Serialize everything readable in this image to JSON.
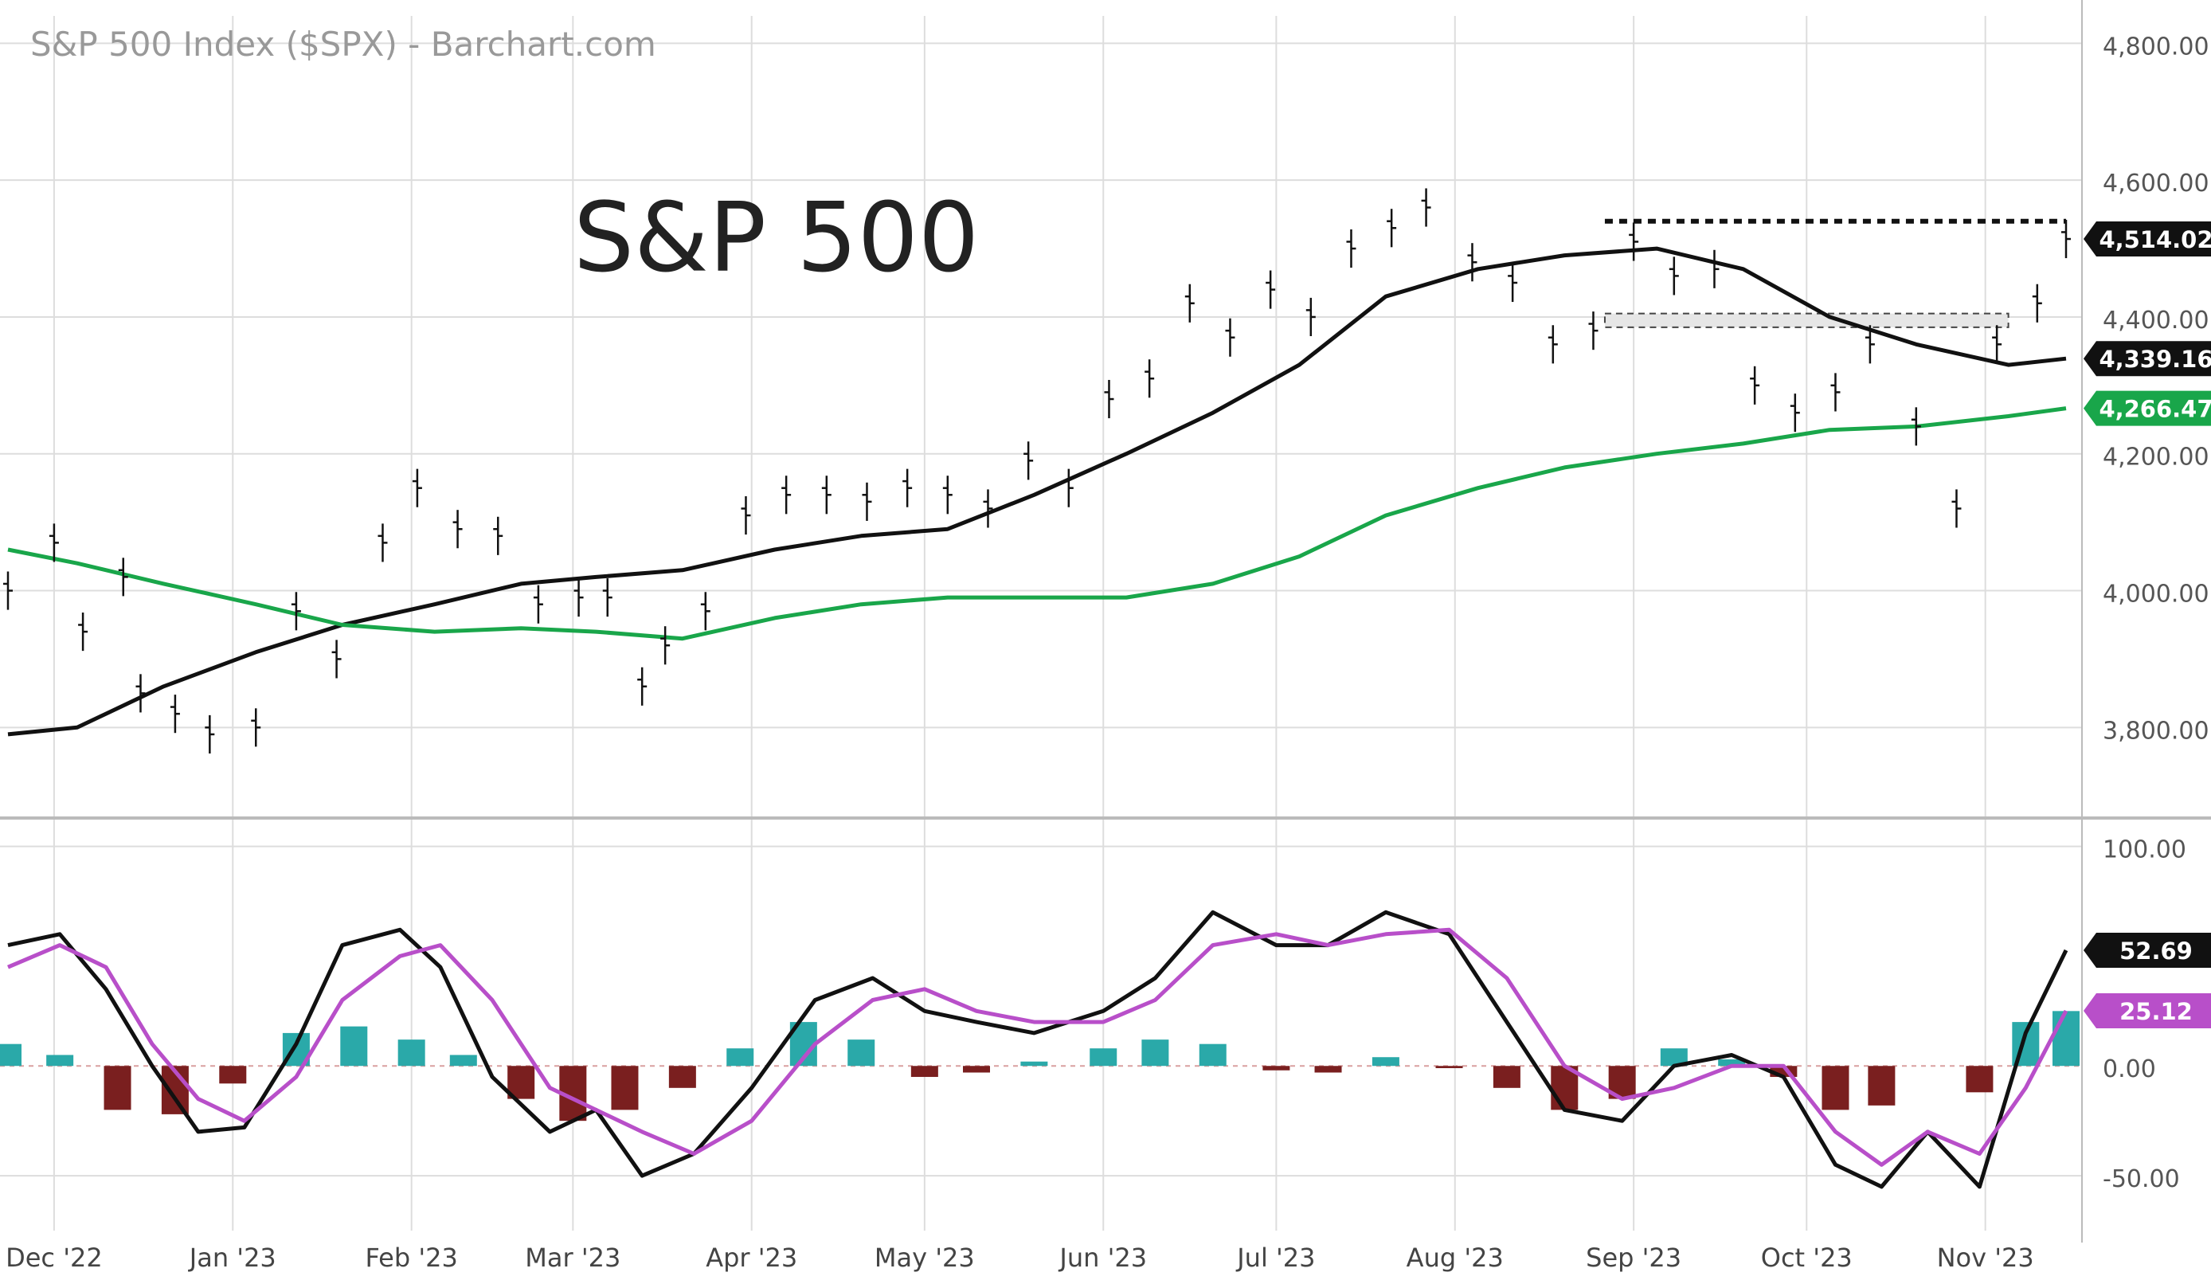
{
  "header": {
    "title": "S&P 500 Index ($SPX) - Barchart.com",
    "big_label": "S&P 500"
  },
  "colors": {
    "ma50": "#111111",
    "ma200": "#19a64a",
    "stoch_k": "#111111",
    "stoch_d": "#b84fc9",
    "hist_pos": "#2aa9a9",
    "hist_neg": "#7a1f1f",
    "grid": "#dddddd",
    "separator": "#bbbbbb",
    "resistance": "#111111"
  },
  "chart_data": [
    {
      "type": "line",
      "panel": "price",
      "title": "S&P 500 Index ($SPX) - Barchart.com",
      "x_ticks": [
        "Dec '22",
        "Jan '23",
        "Feb '23",
        "Mar '23",
        "Apr '23",
        "May '23",
        "Jun '23",
        "Jul '23",
        "Aug '23",
        "Sep '23",
        "Oct '23",
        "Nov '23"
      ],
      "x_range": [
        "2022-11-23",
        "2023-11-15"
      ],
      "y_ticks": [
        3800,
        4000,
        4200,
        4400,
        4600,
        4800
      ],
      "y_tick_labels": [
        "3,800.00",
        "4,000.00",
        "4,200.00",
        "4,400.00",
        "4,600.00",
        "4,800.00"
      ],
      "ylim": [
        3670,
        4840
      ],
      "grid": true,
      "price_bars": {
        "x": [
          "2022-11-23",
          "2022-12-01",
          "2022-12-06",
          "2022-12-13",
          "2022-12-16",
          "2022-12-22",
          "2022-12-28",
          "2023-01-05",
          "2023-01-12",
          "2023-01-19",
          "2023-01-27",
          "2023-02-02",
          "2023-02-09",
          "2023-02-16",
          "2023-02-23",
          "2023-03-02",
          "2023-03-07",
          "2023-03-13",
          "2023-03-17",
          "2023-03-24",
          "2023-03-31",
          "2023-04-07",
          "2023-04-14",
          "2023-04-21",
          "2023-04-28",
          "2023-05-05",
          "2023-05-12",
          "2023-05-19",
          "2023-05-26",
          "2023-06-02",
          "2023-06-09",
          "2023-06-16",
          "2023-06-23",
          "2023-06-30",
          "2023-07-07",
          "2023-07-14",
          "2023-07-21",
          "2023-07-27",
          "2023-08-04",
          "2023-08-11",
          "2023-08-18",
          "2023-08-25",
          "2023-09-01",
          "2023-09-08",
          "2023-09-15",
          "2023-09-22",
          "2023-09-29",
          "2023-10-06",
          "2023-10-12",
          "2023-10-20",
          "2023-10-27",
          "2023-11-03",
          "2023-11-10",
          "2023-11-15"
        ],
        "close": [
          4000,
          4070,
          3940,
          4020,
          3850,
          3820,
          3790,
          3800,
          3970,
          3900,
          4070,
          4150,
          4090,
          4080,
          3980,
          3990,
          3990,
          3860,
          3920,
          3970,
          4110,
          4140,
          4140,
          4130,
          4150,
          4140,
          4120,
          4190,
          4150,
          4280,
          4310,
          4420,
          4370,
          4440,
          4400,
          4500,
          4530,
          4560,
          4480,
          4450,
          4360,
          4380,
          4510,
          4460,
          4470,
          4300,
          4260,
          4290,
          4360,
          4240,
          4120,
          4360,
          4420,
          4514
        ]
      },
      "series": [
        {
          "name": "",
          "color": "#111111",
          "x": [
            "2022-11-23",
            "2022-12-05",
            "2022-12-20",
            "2023-01-05",
            "2023-01-20",
            "2023-02-05",
            "2023-02-20",
            "2023-03-05",
            "2023-03-20",
            "2023-04-05",
            "2023-04-20",
            "2023-05-05",
            "2023-05-20",
            "2023-06-05",
            "2023-06-20",
            "2023-07-05",
            "2023-07-20",
            "2023-08-05",
            "2023-08-20",
            "2023-09-05",
            "2023-09-20",
            "2023-10-05",
            "2023-10-20",
            "2023-11-05",
            "2023-11-15"
          ],
          "values": [
            3790,
            3800,
            3860,
            3910,
            3950,
            3980,
            4010,
            4020,
            4030,
            4060,
            4080,
            4090,
            4140,
            4200,
            4260,
            4330,
            4430,
            4470,
            4490,
            4500,
            4470,
            4400,
            4360,
            4330,
            4339.16
          ]
        },
        {
          "name": "",
          "color": "#19a64a",
          "x": [
            "2022-11-23",
            "2022-12-05",
            "2022-12-20",
            "2023-01-05",
            "2023-01-20",
            "2023-02-05",
            "2023-02-20",
            "2023-03-05",
            "2023-03-20",
            "2023-04-05",
            "2023-04-20",
            "2023-05-05",
            "2023-05-20",
            "2023-06-05",
            "2023-06-20",
            "2023-07-05",
            "2023-07-20",
            "2023-08-05",
            "2023-08-20",
            "2023-09-05",
            "2023-09-20",
            "2023-10-05",
            "2023-10-20",
            "2023-11-05",
            "2023-11-15"
          ],
          "values": [
            4060,
            4040,
            4010,
            3980,
            3950,
            3940,
            3945,
            3940,
            3930,
            3960,
            3980,
            3990,
            3990,
            3990,
            4010,
            4050,
            4110,
            4150,
            4180,
            4200,
            4215,
            4235,
            4240,
            4255,
            4266.47
          ]
        }
      ],
      "annotations": [
        {
          "kind": "resistance_line",
          "value": 4540,
          "from": "2023-08-27",
          "to": "2023-11-15",
          "style": "dotted"
        },
        {
          "kind": "band",
          "low": 4385,
          "high": 4405,
          "from": "2023-08-27",
          "to": "2023-11-05",
          "style": "dashed"
        }
      ],
      "badges": [
        {
          "label": "4,514.02",
          "value": 4514.02,
          "bg": "#111111",
          "fg": "#ffffff"
        },
        {
          "label": "4,339.16",
          "value": 4339.16,
          "bg": "#111111",
          "fg": "#ffffff"
        },
        {
          "label": "4,266.47",
          "value": 4266.47,
          "bg": "#19a64a",
          "fg": "#ffffff"
        }
      ]
    },
    {
      "type": "line",
      "panel": "oscillator",
      "y_ticks": [
        100,
        0,
        -50
      ],
      "y_tick_labels": [
        "100.00",
        "0.00",
        "-50.00"
      ],
      "ylim": [
        -75,
        110
      ],
      "grid": true,
      "series": [
        {
          "name": "",
          "color": "#111111",
          "x": [
            "2022-11-23",
            "2022-12-02",
            "2022-12-10",
            "2022-12-18",
            "2022-12-26",
            "2023-01-03",
            "2023-01-12",
            "2023-01-20",
            "2023-01-30",
            "2023-02-06",
            "2023-02-15",
            "2023-02-25",
            "2023-03-05",
            "2023-03-13",
            "2023-03-22",
            "2023-04-01",
            "2023-04-12",
            "2023-04-22",
            "2023-05-01",
            "2023-05-10",
            "2023-05-20",
            "2023-06-01",
            "2023-06-10",
            "2023-06-20",
            "2023-07-01",
            "2023-07-10",
            "2023-07-20",
            "2023-07-31",
            "2023-08-10",
            "2023-08-20",
            "2023-08-30",
            "2023-09-08",
            "2023-09-18",
            "2023-09-27",
            "2023-10-06",
            "2023-10-14",
            "2023-10-22",
            "2023-10-31",
            "2023-11-08",
            "2023-11-15"
          ],
          "values": [
            55,
            60,
            35,
            0,
            -30,
            -28,
            10,
            55,
            62,
            45,
            -5,
            -30,
            -20,
            -50,
            -40,
            -10,
            30,
            40,
            25,
            20,
            15,
            25,
            40,
            70,
            55,
            55,
            70,
            60,
            20,
            -20,
            -25,
            0,
            5,
            -5,
            -45,
            -55,
            -30,
            -55,
            15,
            52.69
          ]
        },
        {
          "name": "",
          "color": "#b84fc9",
          "x": [
            "2022-11-23",
            "2022-12-02",
            "2022-12-10",
            "2022-12-18",
            "2022-12-26",
            "2023-01-03",
            "2023-01-12",
            "2023-01-20",
            "2023-01-30",
            "2023-02-06",
            "2023-02-15",
            "2023-02-25",
            "2023-03-05",
            "2023-03-13",
            "2023-03-22",
            "2023-04-01",
            "2023-04-12",
            "2023-04-22",
            "2023-05-01",
            "2023-05-10",
            "2023-05-20",
            "2023-06-01",
            "2023-06-10",
            "2023-06-20",
            "2023-07-01",
            "2023-07-10",
            "2023-07-20",
            "2023-07-31",
            "2023-08-10",
            "2023-08-20",
            "2023-08-30",
            "2023-09-08",
            "2023-09-18",
            "2023-09-27",
            "2023-10-06",
            "2023-10-14",
            "2023-10-22",
            "2023-10-31",
            "2023-11-08",
            "2023-11-15"
          ],
          "values": [
            45,
            55,
            45,
            10,
            -15,
            -25,
            -5,
            30,
            50,
            55,
            30,
            -10,
            -20,
            -30,
            -40,
            -25,
            10,
            30,
            35,
            25,
            20,
            20,
            30,
            55,
            60,
            55,
            60,
            62,
            40,
            0,
            -15,
            -10,
            0,
            0,
            -30,
            -45,
            -30,
            -40,
            -10,
            25.12
          ]
        }
      ],
      "histogram": {
        "x": [
          "2022-11-23",
          "2022-12-02",
          "2022-12-12",
          "2022-12-22",
          "2023-01-01",
          "2023-01-12",
          "2023-01-22",
          "2023-02-01",
          "2023-02-10",
          "2023-02-20",
          "2023-03-01",
          "2023-03-10",
          "2023-03-20",
          "2023-03-30",
          "2023-04-10",
          "2023-04-20",
          "2023-05-01",
          "2023-05-10",
          "2023-05-20",
          "2023-06-01",
          "2023-06-10",
          "2023-06-20",
          "2023-07-01",
          "2023-07-10",
          "2023-07-20",
          "2023-07-31",
          "2023-08-10",
          "2023-08-20",
          "2023-08-30",
          "2023-09-08",
          "2023-09-18",
          "2023-09-27",
          "2023-10-06",
          "2023-10-14",
          "2023-10-22",
          "2023-10-31",
          "2023-11-08",
          "2023-11-15"
        ],
        "values": [
          10,
          5,
          -20,
          -22,
          -8,
          15,
          18,
          12,
          5,
          -15,
          -25,
          -20,
          -10,
          8,
          20,
          12,
          -5,
          -3,
          2,
          8,
          12,
          10,
          -2,
          -3,
          4,
          -1,
          -10,
          -20,
          -15,
          8,
          3,
          -5,
          -20,
          -18,
          0,
          -12,
          20,
          25
        ]
      },
      "badges": [
        {
          "label": "52.69",
          "value": 52.69,
          "bg": "#111111",
          "fg": "#ffffff"
        },
        {
          "label": "25.12",
          "value": 25.12,
          "bg": "#b84fc9",
          "fg": "#ffffff"
        }
      ]
    }
  ]
}
